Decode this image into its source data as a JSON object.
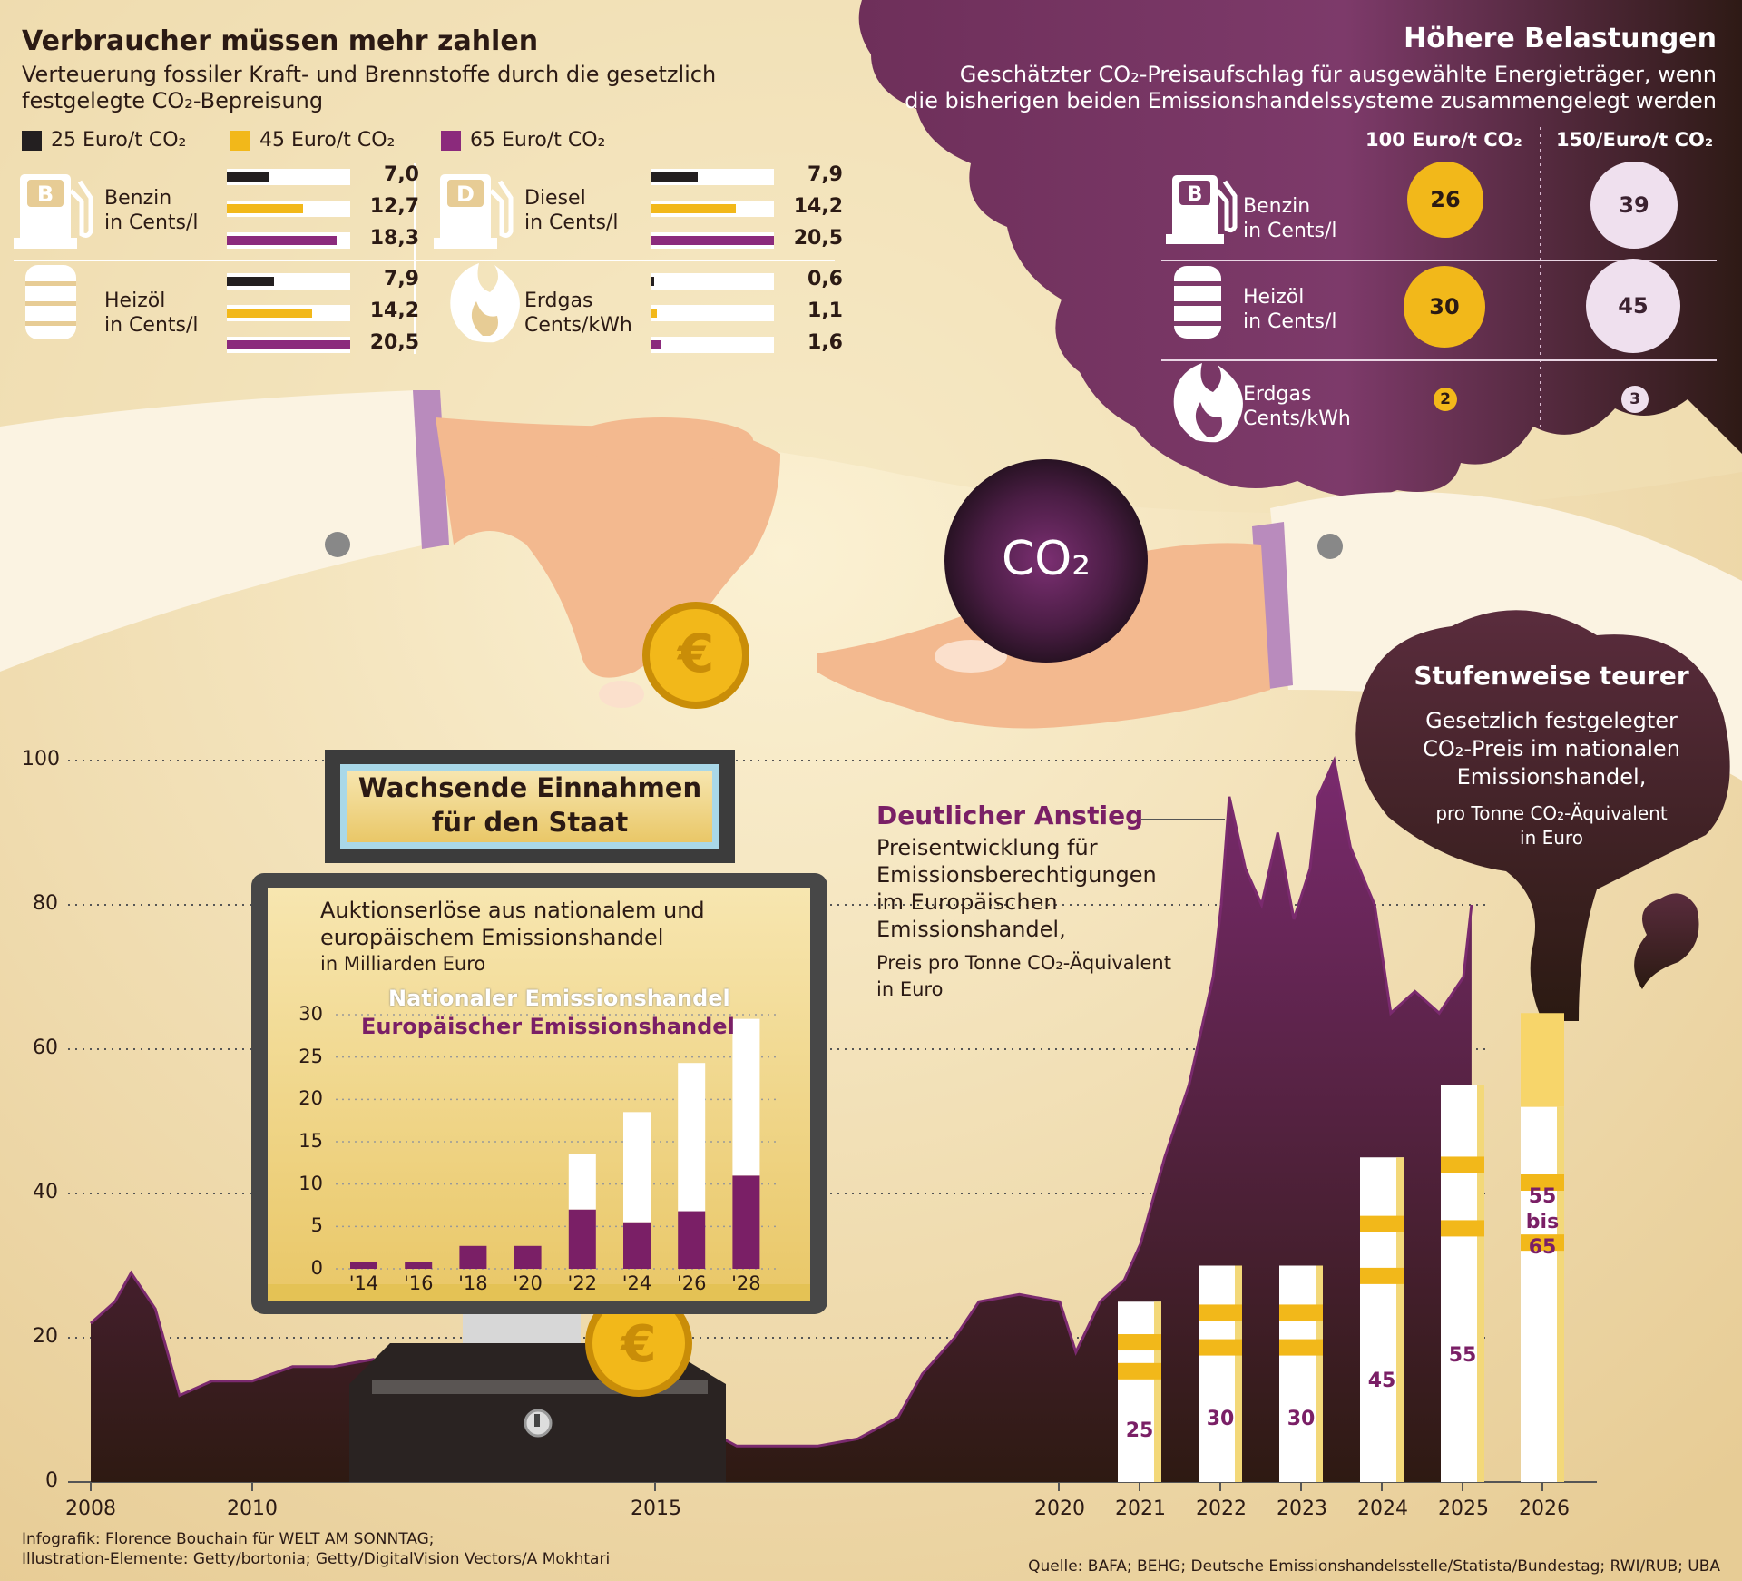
{
  "top_left": {
    "title": "Verbraucher müssen mehr zahlen",
    "subtitle_line1": "Verteuerung fossiler Kraft- und Brennstoffe durch die gesetzlich",
    "subtitle_line2": "festgelegte CO₂-Bepreisung",
    "legend": [
      {
        "label": "25 Euro/t CO₂",
        "color": "#231f20"
      },
      {
        "label": "45 Euro/t CO₂",
        "color": "#f2b81a"
      },
      {
        "label": "65 Euro/t CO₂",
        "color": "#8b2a7c"
      }
    ],
    "fuels": [
      {
        "name": "Benzin",
        "unit": "in Cents/l",
        "icon": "gas-pump-b-icon",
        "values": [
          "7,0",
          "12,7",
          "18,3"
        ]
      },
      {
        "name": "Diesel",
        "unit": "in Cents/l",
        "icon": "gas-pump-d-icon",
        "values": [
          "7,9",
          "14,2",
          "20,5"
        ]
      },
      {
        "name": "Heizöl",
        "unit": "in Cents/l",
        "icon": "oil-barrel-icon",
        "values": [
          "7,9",
          "14,2",
          "20,5"
        ]
      },
      {
        "name": "Erdgas",
        "unit": "Cents/kWh",
        "icon": "flame-icon",
        "values": [
          "0,6",
          "1,1",
          "1,6"
        ]
      }
    ]
  },
  "top_right": {
    "title": "Höhere Belastungen",
    "subtitle_line1": "Geschätzter CO₂-Preisaufschlag für ausgewählte Energieträger, wenn",
    "subtitle_line2": "die bisherigen beiden Emissionshandelssysteme zusammengelegt werden",
    "col1": "100 Euro/t CO₂",
    "col2": "150/Euro/t CO₂",
    "rows": [
      {
        "name": "Benzin",
        "unit": "in Cents/l",
        "icon": "gas-pump-b-icon",
        "v1": "26",
        "v2": "39"
      },
      {
        "name": "Heizöl",
        "unit": "in Cents/l",
        "icon": "oil-barrel-icon",
        "v1": "30",
        "v2": "45"
      },
      {
        "name": "Erdgas",
        "unit": "Cents/kWh",
        "icon": "flame-icon",
        "v1": "2",
        "v2": "3"
      }
    ]
  },
  "illustration": {
    "co2_label": "CO₂",
    "icons": [
      "hand-icon",
      "euro-coin-icon",
      "co2-ball-icon",
      "cash-register-icon"
    ]
  },
  "monitor": {
    "sign_line1": "Wachsende Einnahmen",
    "sign_line2": "für den Staat",
    "desc_line1": "Auktionserlöse aus nationalem und",
    "desc_line2": "europäischem Emissionshandel",
    "desc_line3": "in Milliarden Euro"
  },
  "eua_annotation": {
    "title": "Deutlicher Anstieg",
    "line1": "Preisentwicklung für",
    "line2": "Emissionsberechtigungen",
    "line3": "im Europäischen",
    "line4": "Emissionshandel,",
    "line5": "Preis pro Tonne CO₂-Äquivalent",
    "line6": "in Euro"
  },
  "stufen": {
    "title": "Stufenweise teurer",
    "line1": "Gesetzlich festgelegter",
    "line2": "CO₂-Preis im nationalen",
    "line3": "Emissionshandel,",
    "line4": "pro Tonne CO₂-Äquivalent",
    "line5": "in Euro"
  },
  "footer": {
    "credit_line1": "Infografik: Florence Bouchain für WELT AM SONNTAG;",
    "credit_line2": "Illustration-Elemente: Getty/bortonia; Getty/DigitalVision Vectors/A Mokhtari",
    "source": "Quelle: BAFA; BEHG; Deutsche Emissionshandelsstelle/Statista/Bundestag; RWI/RUB; UBA"
  },
  "chart_data": [
    {
      "type": "area",
      "title": "Deutlicher Anstieg",
      "ylim": [
        0,
        100
      ],
      "y_ticks": [
        0,
        20,
        40,
        60,
        80,
        100
      ],
      "x_ticks": [
        "2008",
        "2010",
        "2015",
        "2020",
        "2021",
        "2022",
        "2023",
        "2024",
        "2025",
        "2026"
      ],
      "x": [
        2008.0,
        2008.3,
        2008.5,
        2008.8,
        2009.1,
        2009.5,
        2010.0,
        2010.5,
        2011.0,
        2011.5,
        2011.9,
        2012.3,
        2012.7,
        2013.0,
        2013.3,
        2013.7,
        2014.0,
        2014.5,
        2015.0,
        2015.5,
        2016.0,
        2016.5,
        2017.0,
        2017.5,
        2018.0,
        2018.3,
        2018.7,
        2019.0,
        2019.5,
        2020.0,
        2020.2,
        2020.5,
        2020.8,
        2021.0,
        2021.3,
        2021.6,
        2021.9,
        2022.0,
        2022.1,
        2022.3,
        2022.5,
        2022.7,
        2022.9,
        2023.1,
        2023.2,
        2023.4,
        2023.6,
        2023.9,
        2024.1,
        2024.4,
        2024.7,
        2025.0,
        2025.1
      ],
      "values": [
        22,
        25,
        29,
        24,
        12,
        14,
        14,
        16,
        16,
        17,
        9,
        8,
        7,
        5,
        4,
        5,
        6,
        7,
        8,
        8,
        5,
        5,
        5,
        6,
        9,
        15,
        20,
        25,
        26,
        25,
        18,
        25,
        28,
        33,
        45,
        55,
        70,
        80,
        95,
        85,
        80,
        90,
        78,
        85,
        95,
        100,
        88,
        80,
        65,
        68,
        65,
        70,
        80
      ],
      "color": "#7a2a6e"
    },
    {
      "type": "bar",
      "title": "Auktionserlöse aus nationalem und europäischem Emissionshandel",
      "ylabel": "in Milliarden Euro",
      "ylim": [
        0,
        30
      ],
      "y_ticks": [
        0,
        5,
        10,
        15,
        20,
        25,
        30
      ],
      "categories": [
        "'14",
        "'16",
        "'18",
        "'20",
        "'22",
        "'24",
        "'26",
        "'28"
      ],
      "series": [
        {
          "name": "Europäischer Emissionshandel",
          "values": [
            0.8,
            0.8,
            2.7,
            2.7,
            7.0,
            5.5,
            6.8,
            11.0
          ],
          "color": "#7a1f66"
        },
        {
          "name": "Nationaler Emissionshandel",
          "values": [
            0,
            0,
            0,
            0,
            6.5,
            13.0,
            17.5,
            18.5
          ],
          "color": "#ffffff"
        }
      ]
    },
    {
      "type": "bar",
      "title": "Stufenweise teurer",
      "categories": [
        "2021",
        "2022",
        "2023",
        "2024",
        "2025",
        "2026"
      ],
      "values": [
        25,
        30,
        30,
        45,
        55,
        65
      ],
      "labels": [
        "25",
        "30",
        "30",
        "45",
        "55",
        "55\nbis\n65"
      ]
    }
  ]
}
